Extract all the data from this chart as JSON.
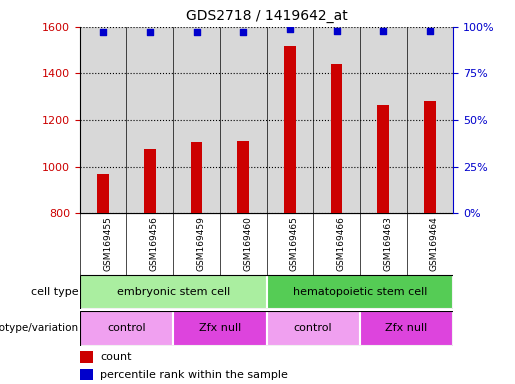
{
  "title": "GDS2718 / 1419642_at",
  "samples": [
    "GSM169455",
    "GSM169456",
    "GSM169459",
    "GSM169460",
    "GSM169465",
    "GSM169466",
    "GSM169463",
    "GSM169464"
  ],
  "counts": [
    970,
    1075,
    1105,
    1110,
    1520,
    1440,
    1265,
    1280
  ],
  "percentile_ranks": [
    97,
    97,
    97,
    97,
    99,
    98,
    98,
    98
  ],
  "bar_color": "#cc0000",
  "dot_color": "#0000cc",
  "ylim_left": [
    800,
    1600
  ],
  "ylim_right": [
    0,
    100
  ],
  "yticks_left": [
    800,
    1000,
    1200,
    1400,
    1600
  ],
  "yticks_right": [
    0,
    25,
    50,
    75,
    100
  ],
  "cell_type_labels": [
    {
      "text": "embryonic stem cell",
      "start": 0,
      "end": 3,
      "color": "#aaeea0"
    },
    {
      "text": "hematopoietic stem cell",
      "start": 4,
      "end": 7,
      "color": "#55cc55"
    }
  ],
  "genotype_labels": [
    {
      "text": "control",
      "start": 0,
      "end": 1,
      "color": "#f0a0f0"
    },
    {
      "text": "Zfx null",
      "start": 2,
      "end": 3,
      "color": "#dd44dd"
    },
    {
      "text": "control",
      "start": 4,
      "end": 5,
      "color": "#f0a0f0"
    },
    {
      "text": "Zfx null",
      "start": 6,
      "end": 7,
      "color": "#dd44dd"
    }
  ],
  "legend_count_color": "#cc0000",
  "legend_dot_color": "#0000cc",
  "tick_label_color_left": "#cc0000",
  "tick_label_color_right": "#0000cc",
  "background_color": "#ffffff",
  "plot_bg_color": "#d8d8d8"
}
